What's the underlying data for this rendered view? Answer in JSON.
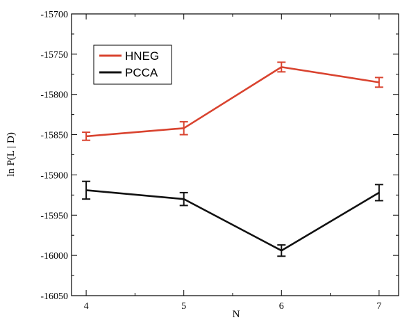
{
  "chart_data": {
    "type": "line",
    "title": "",
    "xlabel": "N",
    "ylabel": "ln P(L | D)",
    "x": [
      4,
      5,
      6,
      7
    ],
    "xlim": [
      3.85,
      7.2
    ],
    "ylim": [
      -16050,
      -15700
    ],
    "xticks": [
      "4",
      "5",
      "6",
      "7"
    ],
    "yticks": [
      "-15700",
      "-15750",
      "-15800",
      "-15850",
      "-15900",
      "-15950",
      "-16000",
      "-16050"
    ],
    "ytick_values": [
      -15700,
      -15750,
      -15800,
      -15850,
      -15900,
      -15950,
      -16000,
      -16050
    ],
    "grid": false,
    "legend_position": "top-left",
    "series": [
      {
        "name": "HNEG",
        "color": "#d9432f",
        "values": [
          -15852,
          -15842,
          -15766,
          -15785
        ],
        "errors": [
          5,
          8,
          6,
          6
        ]
      },
      {
        "name": "PCCA",
        "color": "#111111",
        "values": [
          -15919,
          -15930,
          -15994,
          -15922
        ],
        "errors": [
          11,
          8,
          7,
          10
        ]
      }
    ]
  }
}
